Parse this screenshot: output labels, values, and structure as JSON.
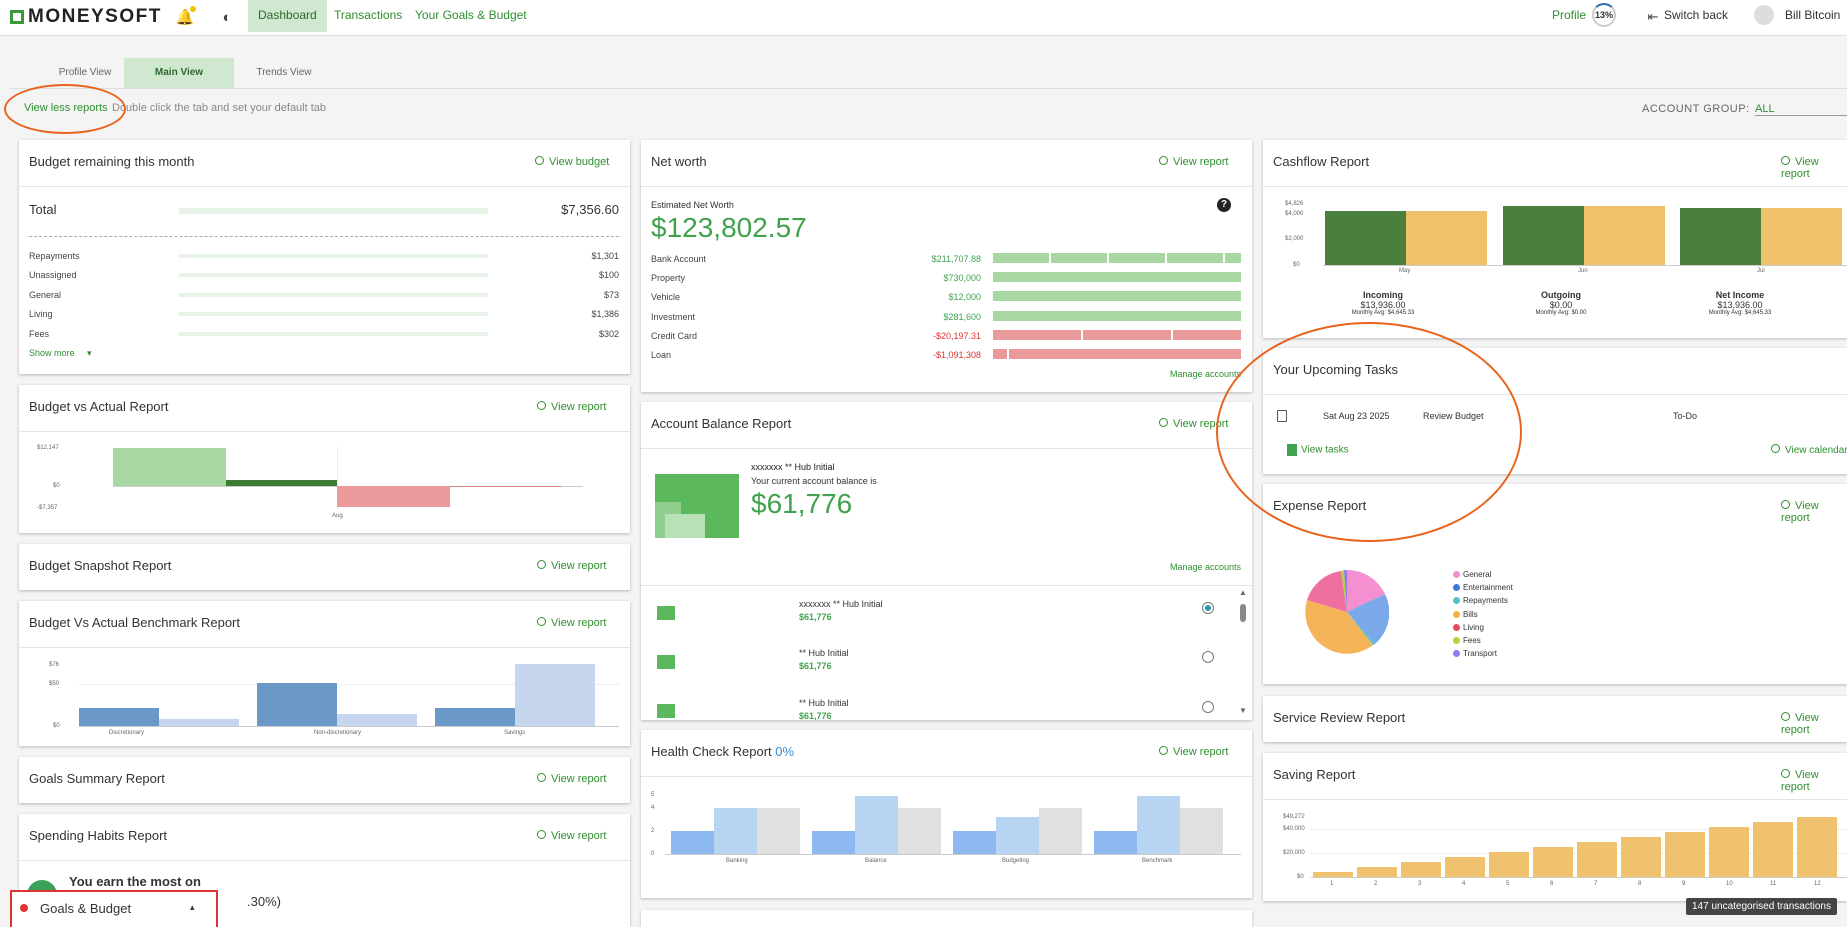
{
  "header": {
    "logo_text": "MONEYSOFT",
    "nav": [
      "Dashboard",
      "Transactions",
      "Your Goals & Budget"
    ],
    "profile_label": "Profile",
    "profile_pct": "13%",
    "switch_back": "Switch back",
    "user_name": "Bill Bitcoin"
  },
  "tabs": [
    "Profile View",
    "Main View",
    "Trends View"
  ],
  "toolbar": {
    "view_less": "View less reports",
    "hint": "Double click the tab and set your default tab",
    "account_group_label": "ACCOUNT GROUP:",
    "account_group_value": "ALL"
  },
  "budget_remaining": {
    "title": "Budget remaining this month",
    "link": "View budget",
    "total_label": "Total",
    "total_value": "$7,356.60",
    "rows": [
      {
        "label": "Repayments",
        "value": "$1,301"
      },
      {
        "label": "Unassigned",
        "value": "$100"
      },
      {
        "label": "General",
        "value": "$73"
      },
      {
        "label": "Living",
        "value": "$1,386"
      },
      {
        "label": "Fees",
        "value": "$302"
      }
    ],
    "show_more": "Show more"
  },
  "budget_vs_actual": {
    "title": "Budget vs Actual Report",
    "link": "View report",
    "ticks": [
      "$12,147",
      "$0",
      "-$7,357"
    ],
    "x_label": "Aug"
  },
  "budget_snapshot": {
    "title": "Budget Snapshot Report",
    "link": "View report"
  },
  "benchmark": {
    "title": "Budget Vs Actual Benchmark Report",
    "link": "View report",
    "ticks": [
      "$76",
      "$50",
      "$0"
    ],
    "categories": [
      "Discretionary",
      "Non-discretionary",
      "Savings"
    ]
  },
  "goals_summary": {
    "title": "Goals Summary Report",
    "link": "View report"
  },
  "spending_habits": {
    "title": "Spending Habits Report",
    "link": "View report",
    "text": "You earn the most on",
    "pct": ".30%)"
  },
  "goals_bar": {
    "label": "Goals & Budget"
  },
  "net_worth": {
    "title": "Net worth",
    "link": "View report",
    "est_label": "Estimated Net Worth",
    "est_value": "$123,802.57",
    "rows": [
      {
        "label": "Bank Account",
        "value": "$211,707.88",
        "neg": false
      },
      {
        "label": "Property",
        "value": "$730,000",
        "neg": false
      },
      {
        "label": "Vehicle",
        "value": "$12,000",
        "neg": false
      },
      {
        "label": "Investment",
        "value": "$281,600",
        "neg": false
      },
      {
        "label": "Credit Card",
        "value": "-$20,197.31",
        "neg": true
      },
      {
        "label": "Loan",
        "value": "-$1,091,308",
        "neg": true
      }
    ],
    "manage": "Manage accounts"
  },
  "account_balance": {
    "title": "Account Balance Report",
    "link": "View report",
    "acct_name": "xxxxxxx ** Hub Initial",
    "acct_desc": "Your current account balance is",
    "acct_value": "$61,776",
    "manage": "Manage accounts",
    "list": [
      {
        "name": "xxxxxxx ** Hub Initial",
        "value": "$61,776"
      },
      {
        "name": "** Hub Initial",
        "value": "$61,776"
      },
      {
        "name": "** Hub Initial",
        "value": "$61,776"
      }
    ]
  },
  "health_check": {
    "title": "Health Check Report",
    "pct": "0%",
    "link": "View report",
    "ticks": [
      "5",
      "4",
      "2",
      "0"
    ],
    "categories": [
      "Banking",
      "Balance",
      "Budgeting",
      "Benchmark"
    ]
  },
  "cashflow": {
    "title": "Cashflow Report",
    "link": "View report",
    "ticks": [
      "$4,826",
      "$4,000",
      "$2,000",
      "$0"
    ],
    "months": [
      "May",
      "Jun",
      "Jul"
    ],
    "stats": [
      {
        "label": "Incoming",
        "value": "$13,936.00",
        "avg": "Monthly Avg: $4,645.33"
      },
      {
        "label": "Outgoing",
        "value": "$0.00",
        "avg": "Monthly Avg: $0.00"
      },
      {
        "label": "Net Income",
        "value": "$13,936.00",
        "avg": "Monthly Avg: $4,645.33"
      }
    ]
  },
  "upcoming_tasks": {
    "title": "Your Upcoming Tasks",
    "task_date": "Sat Aug 23 2025",
    "task_name": "Review Budget",
    "task_status": "To-Do",
    "view_tasks": "View tasks",
    "view_calendar": "View calendar"
  },
  "expense": {
    "title": "Expense Report",
    "link": "View report",
    "legend": [
      {
        "label": "General",
        "color": "#f48fd0"
      },
      {
        "label": "Entertainment",
        "color": "#3a7bd5"
      },
      {
        "label": "Repayments",
        "color": "#4fc3c8"
      },
      {
        "label": "Bills",
        "color": "#f5b041"
      },
      {
        "label": "Living",
        "color": "#e84b5f"
      },
      {
        "label": "Fees",
        "color": "#b5d334"
      },
      {
        "label": "Transport",
        "color": "#8e7cf0"
      }
    ]
  },
  "service_review": {
    "title": "Service Review Report",
    "link": "View report"
  },
  "saving": {
    "title": "Saving Report",
    "link": "View report",
    "ticks": [
      "$49,272",
      "$40,000",
      "$20,000",
      "$0"
    ],
    "x": [
      "1",
      "2",
      "3",
      "4",
      "5",
      "6",
      "7",
      "8",
      "9",
      "10",
      "11",
      "12"
    ],
    "values": [
      4100,
      8200,
      12300,
      16400,
      20500,
      24600,
      28700,
      32800,
      36900,
      41000,
      45100,
      49272
    ]
  },
  "uncategorised": "147 uncategorised transactions"
}
